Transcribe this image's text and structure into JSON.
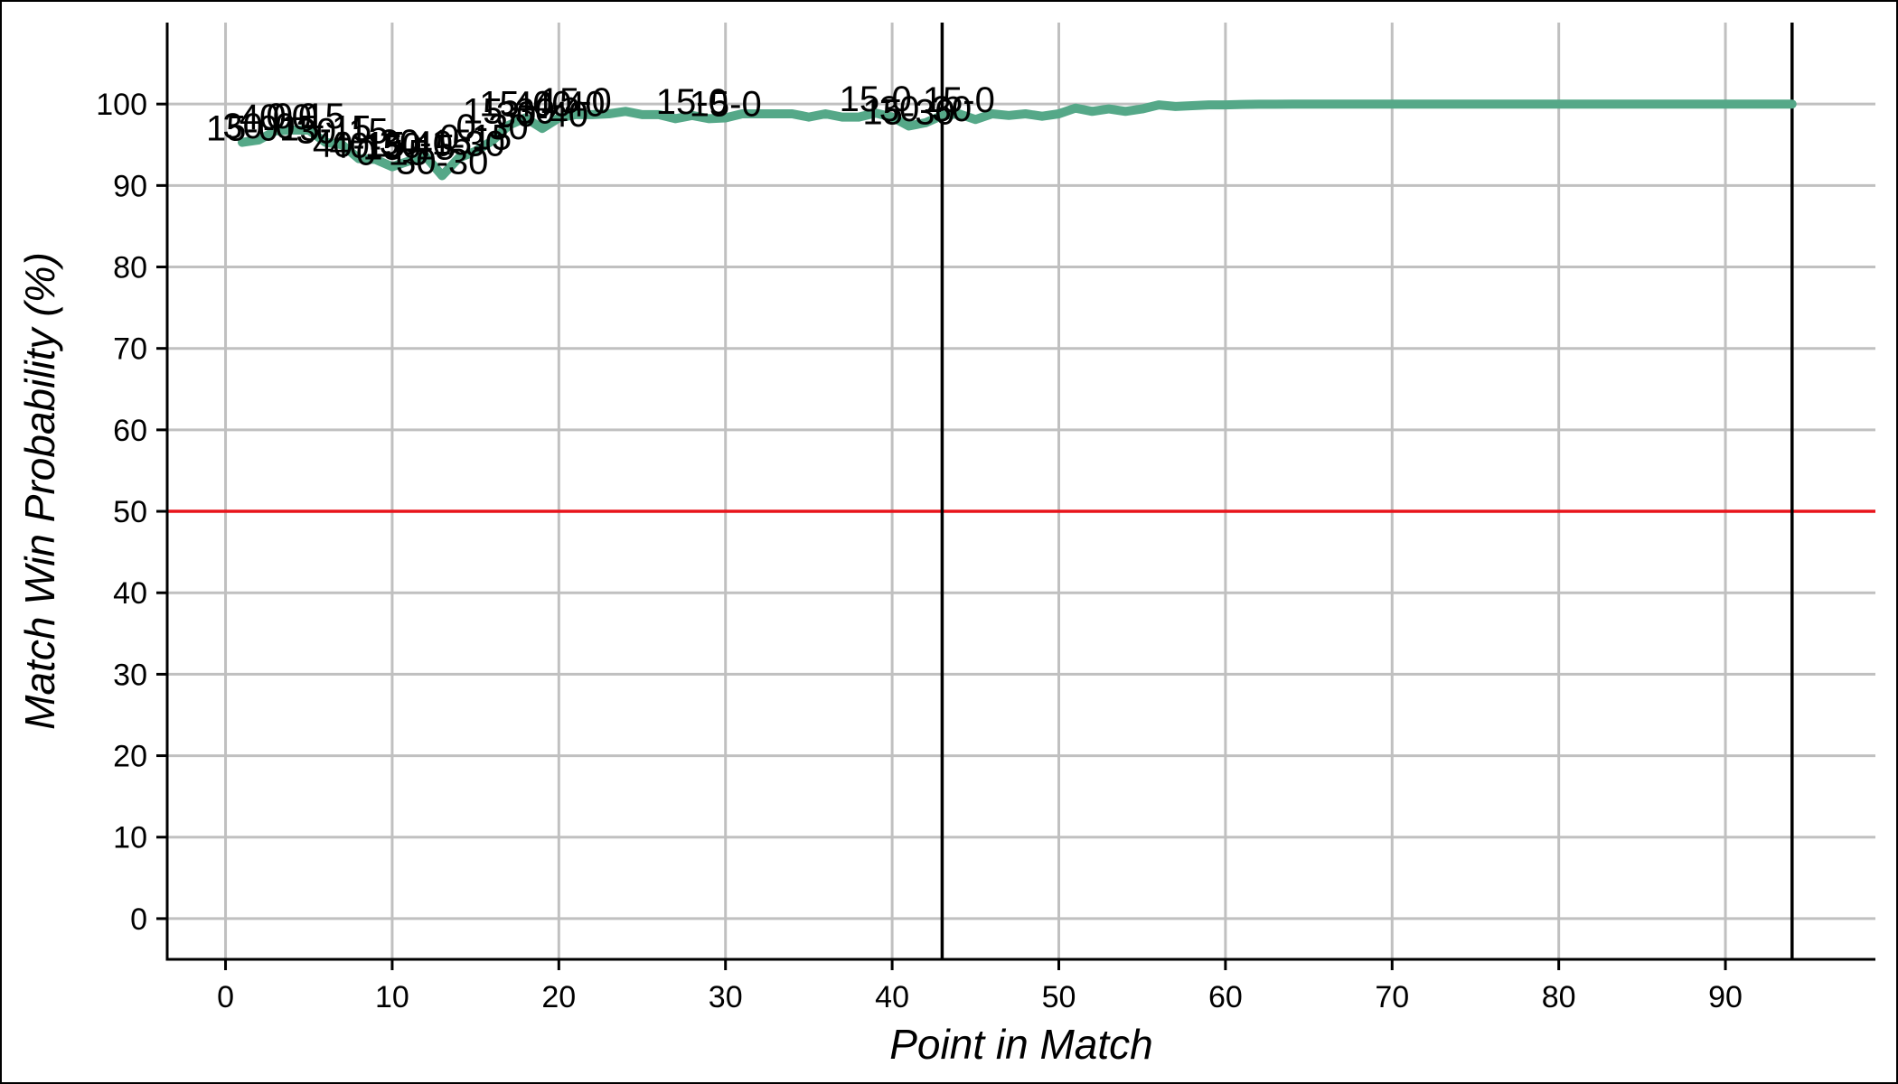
{
  "chart_data": {
    "type": "line",
    "title": "",
    "xlabel": "Point in Match",
    "ylabel": "Match Win Probability (%)",
    "xlim": [
      -3.5,
      99
    ],
    "ylim": [
      -5,
      110
    ],
    "x_ticks": [
      0,
      10,
      20,
      30,
      40,
      50,
      60,
      70,
      80,
      90
    ],
    "y_ticks": [
      0,
      10,
      20,
      30,
      40,
      50,
      60,
      70,
      80,
      90,
      100
    ],
    "grid": true,
    "reference_line": {
      "y": 50,
      "color": "#e8141b"
    },
    "set_markers": [
      43,
      94
    ],
    "colors": {
      "series": "#55a888",
      "grid": "#c0c0c0",
      "axis": "#000000"
    },
    "series": [
      {
        "x": [
          1,
          2,
          3,
          4,
          5,
          6,
          7,
          8,
          9,
          10,
          11,
          12,
          13,
          14,
          15,
          16,
          17,
          18,
          19,
          20,
          21,
          22,
          23,
          24,
          25,
          26,
          27,
          28,
          29,
          30,
          31,
          32,
          33,
          34,
          35,
          36,
          37,
          38,
          39,
          40,
          41,
          42,
          43,
          44,
          45,
          46,
          47,
          48,
          49,
          50,
          51,
          52,
          53,
          54,
          55,
          56,
          57,
          58,
          59,
          60,
          61,
          62,
          63,
          64,
          65,
          66,
          67,
          68,
          69,
          70,
          71,
          72,
          73,
          74,
          75,
          76,
          77,
          78,
          79,
          80,
          81,
          82,
          83,
          84,
          85,
          86,
          87,
          88,
          89,
          90,
          91,
          92,
          93,
          94
        ],
        "values": [
          95.3,
          95.6,
          96.7,
          96.8,
          96.8,
          95.3,
          95.0,
          93.3,
          93.2,
          92.3,
          93.0,
          93.6,
          91.2,
          93.4,
          94.2,
          95.5,
          97.4,
          98.3,
          97.0,
          98.3,
          98.7,
          98.7,
          98.8,
          99.1,
          98.7,
          98.7,
          98.2,
          98.6,
          98.2,
          98.3,
          98.8,
          98.8,
          98.8,
          98.8,
          98.4,
          98.8,
          98.4,
          98.4,
          98.9,
          98.4,
          97.3,
          97.7,
          98.6,
          98.8,
          98.1,
          98.8,
          98.6,
          98.8,
          98.5,
          98.8,
          99.5,
          99.1,
          99.4,
          99.1,
          99.4,
          99.9,
          99.7,
          99.8,
          99.9,
          99.9,
          99.95,
          99.97,
          99.98,
          99.99,
          99.99,
          100,
          100,
          100,
          100,
          100,
          100,
          100,
          100,
          100,
          100,
          100,
          100,
          100,
          100,
          100,
          100,
          100,
          100,
          100,
          100,
          100,
          100,
          100,
          100,
          100,
          100,
          100,
          100,
          100
        ]
      }
    ],
    "annotations": [
      {
        "x": 1,
        "y": 95.3,
        "text": "15-0"
      },
      {
        "x": 2,
        "y": 95.6,
        "text": "30-0"
      },
      {
        "x": 3,
        "y": 96.7,
        "text": "40-0"
      },
      {
        "x": 4,
        "y": 96.8,
        "text": "0-0"
      },
      {
        "x": 5,
        "y": 96.8,
        "text": "0-15"
      },
      {
        "x": 6,
        "y": 95.3,
        "text": "15-15"
      },
      {
        "x": 7,
        "y": 95.0,
        "text": "30-15"
      },
      {
        "x": 8,
        "y": 93.3,
        "text": "40-15"
      },
      {
        "x": 9,
        "y": 93.2,
        "text": "40-30"
      },
      {
        "x": 10,
        "y": 92.3,
        "text": "0-15"
      },
      {
        "x": 11,
        "y": 93.0,
        "text": "15-15"
      },
      {
        "x": 12,
        "y": 93.6,
        "text": "30-15"
      },
      {
        "x": 13,
        "y": 91.2,
        "text": "30-30"
      },
      {
        "x": 14,
        "y": 93.4,
        "text": "40-30"
      },
      {
        "x": 15,
        "y": 94.2,
        "text": "0-15"
      },
      {
        "x": 16,
        "y": 95.5,
        "text": "0-30"
      },
      {
        "x": 17,
        "y": 97.4,
        "text": "15-30"
      },
      {
        "x": 18,
        "y": 98.3,
        "text": "15-40"
      },
      {
        "x": 19,
        "y": 97.0,
        "text": "30-40"
      },
      {
        "x": 20,
        "y": 98.3,
        "text": "40-40"
      },
      {
        "x": 21,
        "y": 98.7,
        "text": "15-0"
      },
      {
        "x": 28,
        "y": 98.6,
        "text": "15-0"
      },
      {
        "x": 30,
        "y": 98.3,
        "text": "15-0"
      },
      {
        "x": 39,
        "y": 98.9,
        "text": "15-0"
      },
      {
        "x": 41,
        "y": 97.3,
        "text": "15-30"
      },
      {
        "x": 42,
        "y": 97.7,
        "text": "30-30"
      },
      {
        "x": 44,
        "y": 98.8,
        "text": "15-0"
      }
    ]
  }
}
